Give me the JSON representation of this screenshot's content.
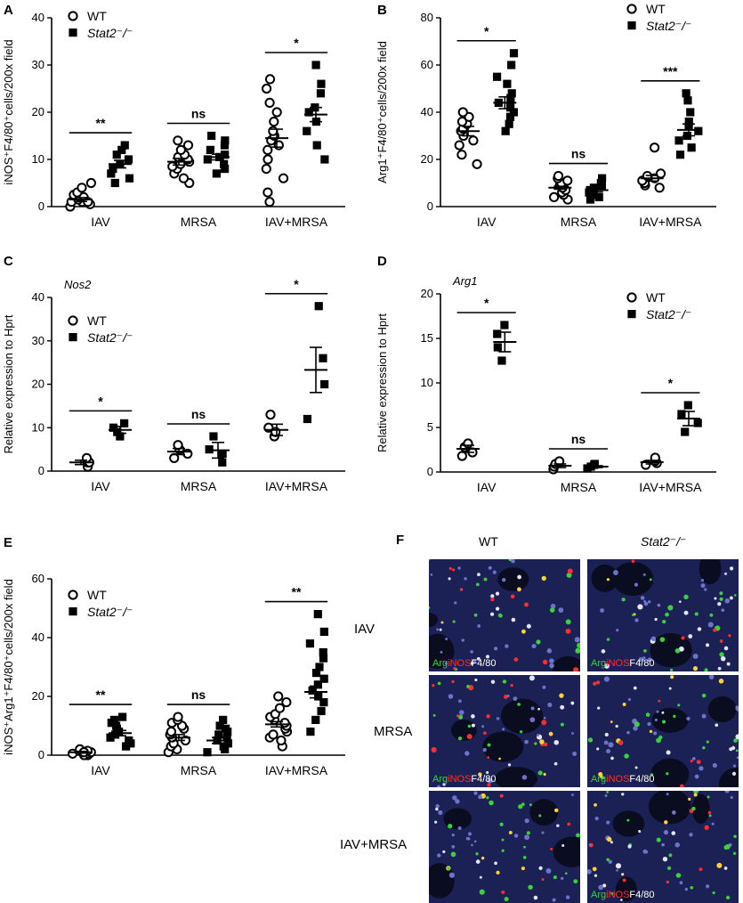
{
  "charts": [
    {
      "id": "A",
      "panel_label": "A",
      "ylabel": "iNOS⁺F4/80⁺cells/200x field",
      "ylim": [
        0,
        40
      ],
      "yticks": [
        0,
        10,
        20,
        30,
        40
      ],
      "categories": [
        "IAV",
        "MRSA",
        "IAV+MRSA"
      ],
      "legend": {
        "wt": "WT",
        "ko": "Stat2⁻/⁻"
      },
      "significance": [
        "**",
        "ns",
        "*"
      ],
      "italic_title": ""
    },
    {
      "id": "B",
      "panel_label": "B",
      "ylabel": "Arg1⁺F4/80⁺cells/200x field",
      "ylim": [
        0,
        80
      ],
      "yticks": [
        0,
        20,
        40,
        60,
        80
      ],
      "categories": [
        "IAV",
        "MRSA",
        "IAV+MRSA"
      ],
      "legend": {
        "wt": "WT",
        "ko": "Stat2⁻/⁻"
      },
      "significance": [
        "*",
        "ns",
        "***"
      ],
      "italic_title": ""
    },
    {
      "id": "C",
      "panel_label": "C",
      "ylabel": "Relative expression to Hprt",
      "ylim": [
        0,
        40
      ],
      "yticks": [
        0,
        10,
        20,
        30,
        40
      ],
      "categories": [
        "IAV",
        "MRSA",
        "IAV+MRSA"
      ],
      "legend": {
        "wt": "WT",
        "ko": "Stat2⁻/⁻"
      },
      "significance": [
        "*",
        "ns",
        "*"
      ],
      "italic_title": "Nos2"
    },
    {
      "id": "D",
      "panel_label": "D",
      "ylabel": "Relative expression to Hprt",
      "ylim": [
        0,
        20
      ],
      "yticks": [
        0,
        5,
        10,
        15,
        20
      ],
      "categories": [
        "IAV",
        "MRSA",
        "IAV+MRSA"
      ],
      "legend": {
        "wt": "WT",
        "ko": "Stat2⁻/⁻"
      },
      "significance": [
        "*",
        "ns",
        "*"
      ],
      "italic_title": "Arg1"
    },
    {
      "id": "E",
      "panel_label": "E",
      "ylabel": "iNOS⁺Arg1⁺F4/80⁺cells/200x field",
      "ylim": [
        0,
        60
      ],
      "yticks": [
        0,
        20,
        40,
        60
      ],
      "categories": [
        "IAV",
        "MRSA",
        "IAV+MRSA"
      ],
      "legend": {
        "wt": "WT",
        "ko": "Stat2⁻/⁻"
      },
      "significance": [
        "**",
        "ns",
        "**"
      ],
      "italic_title": ""
    }
  ],
  "chart_data": [
    {
      "panel": "A",
      "type": "scatter",
      "categories": [
        "IAV",
        "MRSA",
        "IAV+MRSA"
      ],
      "ylabel": "iNOS⁺F4/80⁺cells/200x field",
      "ylim": [
        0,
        40
      ],
      "grid": false,
      "legend_position": "top",
      "series": [
        {
          "name": "WT",
          "marker": "open-circle",
          "values": [
            [
              0,
              0.5,
              1,
              1,
              1.5,
              2,
              2,
              2.5,
              3,
              4,
              5,
              1
            ],
            [
              5,
              6,
              7,
              8,
              8.5,
              9,
              9.5,
              10,
              10.5,
              11,
              12,
              13,
              14
            ],
            [
              1,
              3,
              6,
              8,
              10,
              12,
              13,
              14,
              15,
              16,
              18,
              20,
              22,
              25,
              27
            ]
          ],
          "mean": [
            1.5,
            9.5,
            14.5
          ],
          "sem": [
            0.4,
            0.7,
            1.9
          ]
        },
        {
          "name": "Stat2⁻/⁻",
          "marker": "filled-square",
          "values": [
            [
              5,
              6,
              7,
              8,
              9,
              10,
              11,
              12,
              13
            ],
            [
              7,
              8,
              9,
              10,
              10.5,
              11,
              12,
              13,
              14,
              15
            ],
            [
              10,
              13,
              16,
              18,
              20,
              21,
              24,
              26,
              30
            ]
          ],
          "mean": [
            9,
            10.5,
            19.5
          ],
          "sem": [
            0.8,
            0.6,
            1.5
          ]
        }
      ],
      "significance": [
        "**",
        "ns",
        "*"
      ]
    },
    {
      "panel": "B",
      "type": "scatter",
      "categories": [
        "IAV",
        "MRSA",
        "IAV+MRSA"
      ],
      "ylabel": "Arg1⁺F4/80⁺cells/200x field",
      "ylim": [
        0,
        80
      ],
      "grid": false,
      "legend_position": "top-right",
      "series": [
        {
          "name": "WT",
          "marker": "open-circle",
          "values": [
            [
              18,
              22,
              26,
              28,
              30,
              32,
              33,
              35,
              36,
              38,
              40
            ],
            [
              3,
              4,
              5,
              6,
              7,
              8,
              9,
              10,
              11,
              12,
              13
            ],
            [
              8,
              9,
              10,
              11,
              12,
              13,
              14,
              25
            ]
          ],
          "mean": [
            32,
            8,
            12
          ],
          "sem": [
            2,
            0.6,
            1.2
          ]
        },
        {
          "name": "Stat2⁻/⁻",
          "marker": "filled-square",
          "values": [
            [
              32,
              35,
              38,
              40,
              42,
              44,
              46,
              48,
              52,
              55,
              60,
              65
            ],
            [
              3,
              4,
              5,
              6,
              7,
              8,
              9,
              10,
              12
            ],
            [
              22,
              25,
              28,
              30,
              32,
              34,
              36,
              40,
              45,
              48
            ]
          ],
          "mean": [
            44,
            7,
            32.5
          ],
          "sem": [
            2.5,
            0.8,
            2.5
          ]
        }
      ],
      "significance": [
        "*",
        "ns",
        "***"
      ]
    },
    {
      "panel": "C",
      "type": "scatter",
      "categories": [
        "IAV",
        "MRSA",
        "IAV+MRSA"
      ],
      "ylabel": "Relative expression to Hprt",
      "ylim": [
        0,
        40
      ],
      "grid": false,
      "title": "Nos2",
      "legend_position": "top-left",
      "series": [
        {
          "name": "WT",
          "marker": "open-circle",
          "values": [
            [
              1,
              2,
              2,
              3
            ],
            [
              3,
              4,
              5,
              6
            ],
            [
              8,
              9,
              10,
              13
            ]
          ],
          "mean": [
            2,
            4.5,
            9.5
          ],
          "sem": [
            0.5,
            0.7,
            1.3
          ]
        },
        {
          "name": "Stat2⁻/⁻",
          "marker": "filled-square",
          "values": [
            [
              8,
              9,
              10,
              11
            ],
            [
              2,
              4,
              5,
              8
            ],
            [
              12,
              20,
              26,
              38
            ]
          ],
          "mean": [
            9.5,
            4.8,
            23.3
          ],
          "sem": [
            0.8,
            1.8,
            5.2
          ]
        }
      ],
      "significance": [
        "*",
        "ns",
        "*"
      ]
    },
    {
      "panel": "D",
      "type": "scatter",
      "categories": [
        "IAV",
        "MRSA",
        "IAV+MRSA"
      ],
      "ylabel": "Relative expression to Hprt",
      "ylim": [
        0,
        20
      ],
      "grid": false,
      "title": "Arg1",
      "legend_position": "top-right",
      "series": [
        {
          "name": "WT",
          "marker": "open-circle",
          "values": [
            [
              1.8,
              2.2,
              2.8,
              3.2
            ],
            [
              0.3,
              0.6,
              0.9,
              1.2
            ],
            [
              0.8,
              1.0,
              1.2,
              1.6
            ]
          ],
          "mean": [
            2.6,
            0.7,
            1.1
          ],
          "sem": [
            0.4,
            0.2,
            0.2
          ]
        },
        {
          "name": "Stat2⁻/⁻",
          "marker": "filled-square",
          "values": [
            [
              12.5,
              14,
              15.5,
              16.5
            ],
            [
              0.4,
              0.6,
              0.8,
              0.9
            ],
            [
              4.5,
              5.5,
              6.5,
              7.5
            ]
          ],
          "mean": [
            14.6,
            0.6,
            6.0
          ],
          "sem": [
            1.1,
            0.1,
            0.8
          ]
        }
      ],
      "significance": [
        "*",
        "ns",
        "*"
      ]
    },
    {
      "panel": "E",
      "type": "scatter",
      "categories": [
        "IAV",
        "MRSA",
        "IAV+MRSA"
      ],
      "ylabel": "iNOS⁺Arg1⁺F4/80⁺cells/200x field",
      "ylim": [
        0,
        60
      ],
      "grid": false,
      "legend_position": "top-left",
      "series": [
        {
          "name": "WT",
          "marker": "open-circle",
          "values": [
            [
              0,
              0,
              0.5,
              1,
              1,
              1.5,
              2,
              0.5,
              1
            ],
            [
              1,
              2,
              3,
              4,
              5,
              6,
              7,
              8,
              9,
              10,
              11,
              12,
              13
            ],
            [
              3,
              5,
              6,
              7,
              8,
              9,
              10,
              11,
              12,
              13,
              14,
              16,
              18,
              20
            ]
          ],
          "mean": [
            1,
            6,
            10.5
          ],
          "sem": [
            0.3,
            1,
            0.9
          ]
        },
        {
          "name": "Stat2⁻/⁻",
          "marker": "filled-square",
          "values": [
            [
              3,
              4,
              5,
              6,
              7,
              8,
              9,
              10,
              11,
              12,
              13
            ],
            [
              1,
              2,
              3,
              4,
              5,
              6,
              7,
              8,
              9,
              10,
              12
            ],
            [
              8,
              12,
              15,
              18,
              20,
              22,
              24,
              26,
              28,
              30,
              33,
              35,
              38,
              42,
              48
            ]
          ],
          "mean": [
            7.5,
            5,
            21.5
          ],
          "sem": [
            0.9,
            1,
            2
          ]
        }
      ],
      "significance": [
        "**",
        "ns",
        "**"
      ]
    }
  ],
  "micrograph": {
    "panel_label": "F",
    "columns": [
      "WT",
      "Stat2⁻/⁻"
    ],
    "rows": [
      "IAV",
      "MRSA",
      "IAV+MRSA"
    ],
    "caption_arg": "Arg",
    "caption_inos": "iNOS",
    "caption_f480": "F4/80"
  },
  "colors": {
    "marker": "#000000",
    "tissue_bg": "#1c2155",
    "green": "#3ad13a",
    "red": "#ff2e2e"
  }
}
